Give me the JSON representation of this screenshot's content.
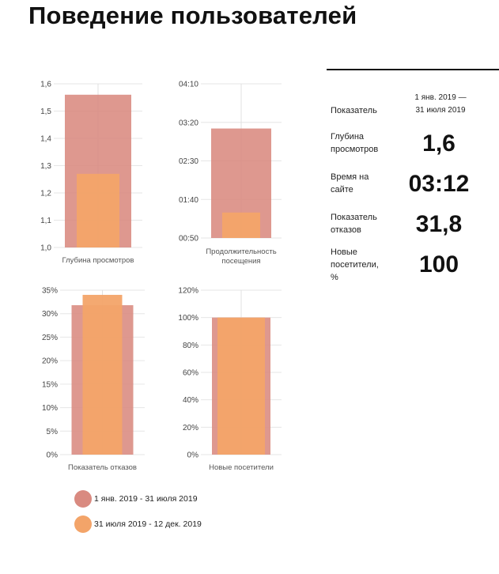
{
  "page": {
    "title": "Поведение пользователей"
  },
  "legend": [
    {
      "label": "1 янв. 2019 - 31 июля 2019",
      "color": "#d98a80"
    },
    {
      "label": "31 июля 2019 - 12 дек. 2019",
      "color": "#f3a469"
    }
  ],
  "table": {
    "header_metric": "Показатель",
    "header_period": "1 янв. 2019 — 31 июля 2019",
    "rows": [
      {
        "label": "Глубина просмотров",
        "value": "1,6"
      },
      {
        "label": "Время на сайте",
        "value": "03:12"
      },
      {
        "label": "Показатель отказов",
        "value": "31,8"
      },
      {
        "label": "Новые посетители, %",
        "value": "100"
      }
    ]
  },
  "chart_data": [
    {
      "type": "bar",
      "xlabel": "Глубина просмотров",
      "ylim": [
        1.0,
        1.6
      ],
      "yticks": [
        "1,0",
        "1,1",
        "1,2",
        "1,3",
        "1,4",
        "1,5",
        "1,6"
      ],
      "series": [
        {
          "name": "1 янв. 2019 - 31 июля 2019",
          "values": [
            1.56
          ]
        },
        {
          "name": "31 июля 2019 - 12 дек. 2019",
          "values": [
            1.27
          ]
        }
      ]
    },
    {
      "type": "bar",
      "xlabel": "Продолжительность посещения",
      "ylim": [
        "00:50",
        "04:10"
      ],
      "yticks": [
        "00:50",
        "01:40",
        "02:30",
        "03:20",
        "04:10"
      ],
      "series": [
        {
          "name": "1 янв. 2019 - 31 июля 2019",
          "values": [
            "03:12"
          ]
        },
        {
          "name": "31 июля 2019 - 12 дек. 2019",
          "values": [
            "01:23"
          ]
        }
      ]
    },
    {
      "type": "bar",
      "xlabel": "Показатель отказов",
      "ylim": [
        0,
        35
      ],
      "yticks": [
        "0%",
        "5%",
        "10%",
        "15%",
        "20%",
        "25%",
        "30%",
        "35%"
      ],
      "series": [
        {
          "name": "1 янв. 2019 - 31 июля 2019",
          "values": [
            31.8
          ]
        },
        {
          "name": "31 июля 2019 - 12 дек. 2019",
          "values": [
            34.0
          ]
        }
      ]
    },
    {
      "type": "bar",
      "xlabel": "Новые посетители",
      "ylim": [
        0,
        120
      ],
      "yticks": [
        "0%",
        "20%",
        "40%",
        "60%",
        "80%",
        "100%",
        "120%"
      ],
      "series": [
        {
          "name": "1 янв. 2019 - 31 июля 2019",
          "values": [
            100
          ]
        },
        {
          "name": "31 июля 2019 - 12 дек. 2019",
          "values": [
            100
          ]
        }
      ]
    }
  ]
}
